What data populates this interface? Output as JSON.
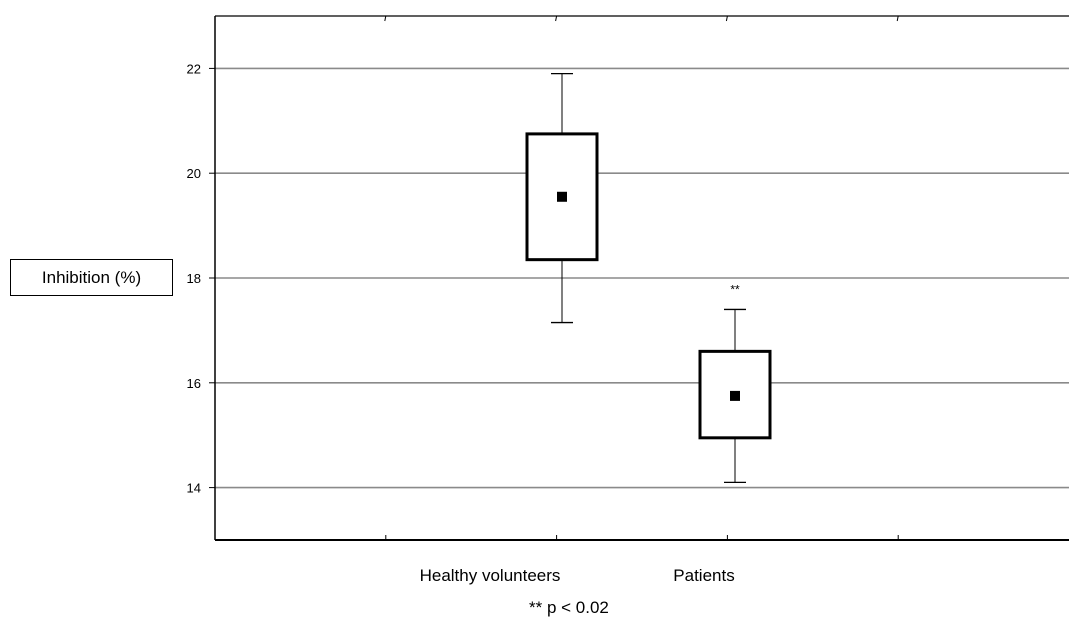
{
  "chart_data": {
    "type": "boxplot",
    "ylabel": "Inhibition (%)",
    "ylim": [
      13,
      23
    ],
    "yticks": [
      "14",
      "16",
      "18",
      "20",
      "22"
    ],
    "grid": true,
    "categories": [
      "Healthy volunteers",
      "Patients"
    ],
    "boxes": [
      {
        "category": "Healthy volunteers",
        "min": 17.15,
        "q1": 18.35,
        "median": 19.55,
        "q3": 20.75,
        "max": 21.9,
        "significance": ""
      },
      {
        "category": "Patients",
        "min": 14.1,
        "q1": 14.95,
        "median": 15.75,
        "q3": 16.6,
        "max": 17.4,
        "significance": "**"
      }
    ],
    "footnote": "** p < 0.02"
  }
}
